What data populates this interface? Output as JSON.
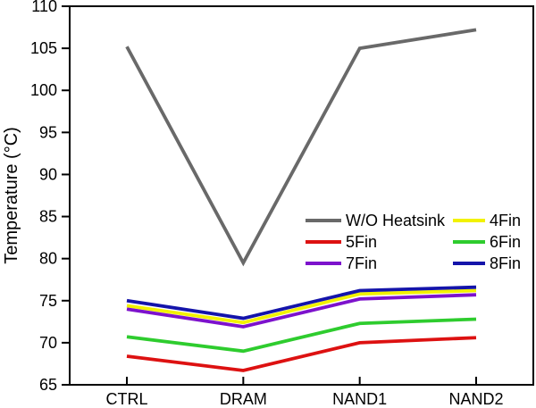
{
  "figure": {
    "background": "#ffffff",
    "axis_color": "#000000",
    "text_color": "#000000"
  },
  "chart_data": {
    "type": "line",
    "title": "",
    "xlabel": "",
    "ylabel": "Temperature (°C)",
    "categories": [
      "CTRL",
      "DRAM",
      "NAND1",
      "NAND2"
    ],
    "ylim": [
      65,
      110
    ],
    "yticks": [
      65,
      70,
      75,
      80,
      85,
      90,
      95,
      100,
      105,
      110
    ],
    "grid": false,
    "legend_position": "inside-right-middle",
    "series": [
      {
        "name": "W/O Heatsink",
        "color": "#696969",
        "values": [
          105.2,
          79.5,
          105.0,
          107.2
        ]
      },
      {
        "name": "4Fin",
        "color": "#f2f200",
        "values": [
          74.4,
          72.4,
          75.8,
          76.2
        ]
      },
      {
        "name": "5Fin",
        "color": "#dd1111",
        "values": [
          68.4,
          66.7,
          70.0,
          70.6
        ]
      },
      {
        "name": "6Fin",
        "color": "#2ecc2e",
        "values": [
          70.7,
          69.0,
          72.3,
          72.8
        ]
      },
      {
        "name": "7Fin",
        "color": "#7d12cc",
        "values": [
          74.0,
          71.9,
          75.2,
          75.7
        ]
      },
      {
        "name": "8Fin",
        "color": "#1414aa",
        "values": [
          75.0,
          72.9,
          76.2,
          76.6
        ]
      }
    ],
    "legend": {
      "rows": [
        [
          "W/O Heatsink",
          "4Fin"
        ],
        [
          "5Fin",
          "6Fin"
        ],
        [
          "7Fin",
          "8Fin"
        ]
      ]
    }
  }
}
